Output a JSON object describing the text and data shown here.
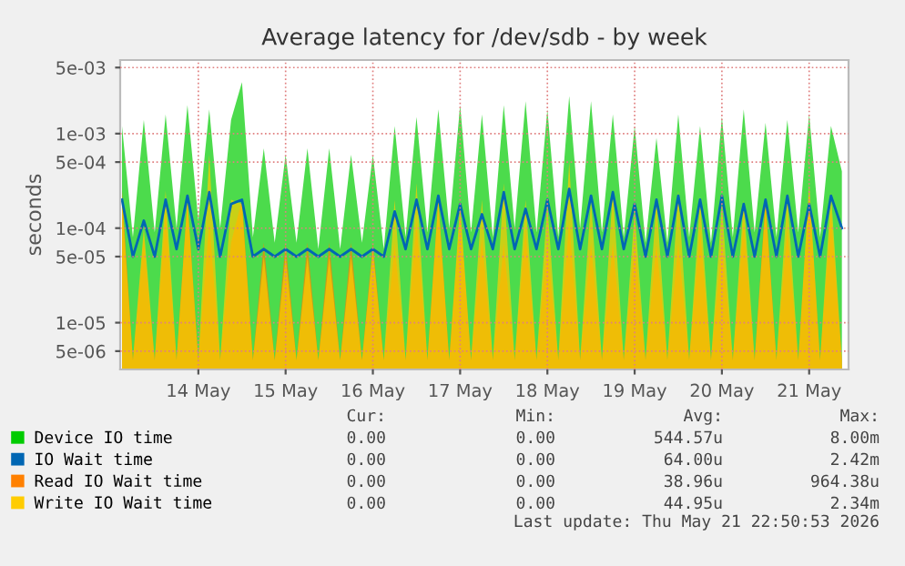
{
  "chart_data": {
    "type": "area",
    "title": "Average latency for /dev/sdb - by week",
    "ylabel": "seconds",
    "x": [
      "2026-05-13T15:00",
      "2026-05-13T18:00",
      "2026-05-13T21:00",
      "2026-05-14T00:00",
      "2026-05-14T03:00",
      "2026-05-14T06:00",
      "2026-05-14T09:00",
      "2026-05-14T12:00",
      "2026-05-14T15:00",
      "2026-05-14T18:00",
      "2026-05-14T21:00",
      "2026-05-15T00:00",
      "2026-05-15T03:00",
      "2026-05-15T06:00",
      "2026-05-15T09:00",
      "2026-05-15T12:00",
      "2026-05-15T15:00",
      "2026-05-15T18:00",
      "2026-05-15T21:00",
      "2026-05-16T00:00",
      "2026-05-16T03:00",
      "2026-05-16T06:00",
      "2026-05-16T09:00",
      "2026-05-16T12:00",
      "2026-05-16T15:00",
      "2026-05-16T18:00",
      "2026-05-16T21:00",
      "2026-05-17T00:00",
      "2026-05-17T03:00",
      "2026-05-17T06:00",
      "2026-05-17T09:00",
      "2026-05-17T12:00",
      "2026-05-17T15:00",
      "2026-05-17T18:00",
      "2026-05-17T21:00",
      "2026-05-18T00:00",
      "2026-05-18T03:00",
      "2026-05-18T06:00",
      "2026-05-18T09:00",
      "2026-05-18T12:00",
      "2026-05-18T15:00",
      "2026-05-18T18:00",
      "2026-05-18T21:00",
      "2026-05-19T00:00",
      "2026-05-19T03:00",
      "2026-05-19T06:00",
      "2026-05-19T09:00",
      "2026-05-19T12:00",
      "2026-05-19T15:00",
      "2026-05-19T18:00",
      "2026-05-19T21:00",
      "2026-05-20T00:00",
      "2026-05-20T03:00",
      "2026-05-20T06:00",
      "2026-05-20T09:00",
      "2026-05-20T12:00",
      "2026-05-20T15:00",
      "2026-05-20T18:00",
      "2026-05-20T21:00",
      "2026-05-21T00:00",
      "2026-05-21T03:00",
      "2026-05-21T06:00",
      "2026-05-21T09:00",
      "2026-05-21T12:00",
      "2026-05-21T15:00",
      "2026-05-21T18:00",
      "2026-05-21T21:00"
    ],
    "series": [
      {
        "name": "Device IO time",
        "color": "#00cc00",
        "values": [
          0.0012,
          8e-05,
          0.0014,
          9e-05,
          0.0016,
          0.0001,
          0.002,
          0.00012,
          0.0018,
          0.0001,
          0.0014,
          0.0035,
          8e-05,
          0.0007,
          7e-05,
          0.0006,
          7e-05,
          0.0007,
          6e-05,
          0.0007,
          6e-05,
          0.0006,
          7e-05,
          0.0006,
          6e-05,
          0.0012,
          8e-05,
          0.0015,
          9e-05,
          0.0018,
          0.0001,
          0.002,
          9e-05,
          0.0016,
          8e-05,
          0.002,
          0.0001,
          0.0022,
          9e-05,
          0.0018,
          8e-05,
          0.0025,
          0.0001,
          0.0022,
          9e-05,
          0.0016,
          8e-05,
          0.0012,
          7e-05,
          0.0009,
          7e-05,
          0.0016,
          8e-05,
          0.0012,
          7e-05,
          0.0015,
          8e-05,
          0.0018,
          9e-05,
          0.0013,
          8e-05,
          0.0014,
          9e-05,
          0.0016,
          8e-05,
          0.0012,
          0.0004
        ]
      },
      {
        "name": "IO Wait time",
        "color": "#0066b3",
        "type": "line",
        "values": [
          0.0002,
          5e-05,
          0.00012,
          5e-05,
          0.0002,
          6e-05,
          0.00022,
          6e-05,
          0.00024,
          5e-05,
          0.00018,
          0.0002,
          5e-05,
          6e-05,
          5e-05,
          6e-05,
          5e-05,
          6e-05,
          5e-05,
          6e-05,
          5e-05,
          6e-05,
          5e-05,
          6e-05,
          5e-05,
          0.00015,
          6e-05,
          0.0002,
          6e-05,
          0.00022,
          6e-05,
          0.00018,
          6e-05,
          0.00014,
          6e-05,
          0.00024,
          6e-05,
          0.00016,
          6e-05,
          0.0002,
          6e-05,
          0.00026,
          6e-05,
          0.00022,
          6e-05,
          0.00024,
          6e-05,
          0.00018,
          5e-05,
          0.0002,
          5e-05,
          0.00022,
          5e-05,
          0.0002,
          5e-05,
          0.00022,
          5e-05,
          0.00018,
          5e-05,
          0.0002,
          5e-05,
          0.00022,
          5e-05,
          0.00018,
          5e-05,
          0.00022,
          0.0001
        ]
      },
      {
        "name": "Read IO Wait time",
        "color": "#ff8000",
        "values": [
          0.00025,
          4e-06,
          8e-05,
          4e-06,
          0.00015,
          4e-06,
          0.0002,
          4e-06,
          0.00012,
          4e-06,
          7e-05,
          0.0002,
          4e-06,
          7e-05,
          4e-06,
          7e-05,
          4e-06,
          7e-05,
          4e-06,
          7e-05,
          4e-06,
          7e-05,
          4e-06,
          7e-05,
          4e-06,
          7e-05,
          4e-06,
          0.00012,
          4e-06,
          0.0002,
          4e-06,
          0.00015,
          4e-06,
          8e-05,
          4e-06,
          7e-05,
          4e-06,
          0.0001,
          4e-06,
          7e-05,
          4e-06,
          0.00012,
          4e-06,
          7e-05,
          4e-06,
          7e-05,
          4e-06,
          7e-05,
          4e-06,
          7e-05,
          4e-06,
          7e-05,
          4e-06,
          0.0001,
          4e-06,
          7e-05,
          4e-06,
          0.00012,
          4e-06,
          0.0002,
          4e-06,
          0.0001,
          4e-06,
          0.00025,
          4e-06,
          0.00015,
          4e-06
        ]
      },
      {
        "name": "Write IO Wait time",
        "color": "#ffcc00",
        "values": [
          0.0002,
          4e-06,
          0.0001,
          4e-06,
          0.00025,
          4e-06,
          0.0002,
          4e-06,
          0.0006,
          4e-06,
          0.0002,
          0.00018,
          4e-06,
          5e-05,
          4e-06,
          5e-05,
          4e-06,
          5e-05,
          4e-06,
          5e-05,
          4e-06,
          5e-05,
          4e-06,
          6e-05,
          4e-06,
          0.0002,
          4e-06,
          0.0003,
          4e-06,
          0.0002,
          4e-06,
          0.00018,
          4e-06,
          0.0002,
          4e-06,
          0.0003,
          4e-06,
          0.0002,
          4e-06,
          0.00018,
          4e-06,
          0.0005,
          4e-06,
          0.0002,
          4e-06,
          0.00025,
          4e-06,
          0.00015,
          4e-06,
          0.0002,
          4e-06,
          0.00025,
          4e-06,
          0.0002,
          4e-06,
          0.00018,
          4e-06,
          0.0002,
          4e-06,
          0.00018,
          4e-06,
          0.00022,
          4e-06,
          0.0003,
          4e-06,
          0.00024,
          4e-06
        ]
      }
    ],
    "log": "y",
    "ylim": [
      3.2e-06,
      0.006
    ],
    "yticks": [
      {
        "value": 5e-06,
        "label": "5e-06"
      },
      {
        "value": 1e-05,
        "label": "1e-05"
      },
      {
        "value": 5e-05,
        "label": "5e-05"
      },
      {
        "value": 0.0001,
        "label": "1e-04"
      },
      {
        "value": 0.0005,
        "label": "5e-04"
      },
      {
        "value": 0.001,
        "label": "1e-03"
      },
      {
        "value": 0.005,
        "label": "5e-03"
      }
    ],
    "xlim": [
      "2026-05-13T14:30",
      "2026-05-21T22:50"
    ],
    "xticks": [
      {
        "value": "2026-05-14T12:00",
        "label": "14 May"
      },
      {
        "value": "2026-05-15T12:00",
        "label": "15 May"
      },
      {
        "value": "2026-05-16T12:00",
        "label": "16 May"
      },
      {
        "value": "2026-05-17T12:00",
        "label": "17 May"
      },
      {
        "value": "2026-05-18T12:00",
        "label": "18 May"
      },
      {
        "value": "2026-05-19T12:00",
        "label": "19 May"
      },
      {
        "value": "2026-05-20T12:00",
        "label": "20 May"
      },
      {
        "value": "2026-05-21T12:00",
        "label": "21 May"
      }
    ],
    "grid": true,
    "legend": "bottom left",
    "annotations": [
      "Cur:",
      "Min:",
      "Avg:",
      "Max:",
      "0.00",
      "0.00",
      "544.57u",
      "8.00m",
      "0.00",
      "0.00",
      "64.00u",
      "2.42m",
      "0.00",
      "0.00",
      "38.96u",
      "964.38u",
      "0.00",
      "0.00",
      "44.95u",
      "2.34m",
      "Last update: Thu May 21 22:50:53 2026"
    ]
  }
}
